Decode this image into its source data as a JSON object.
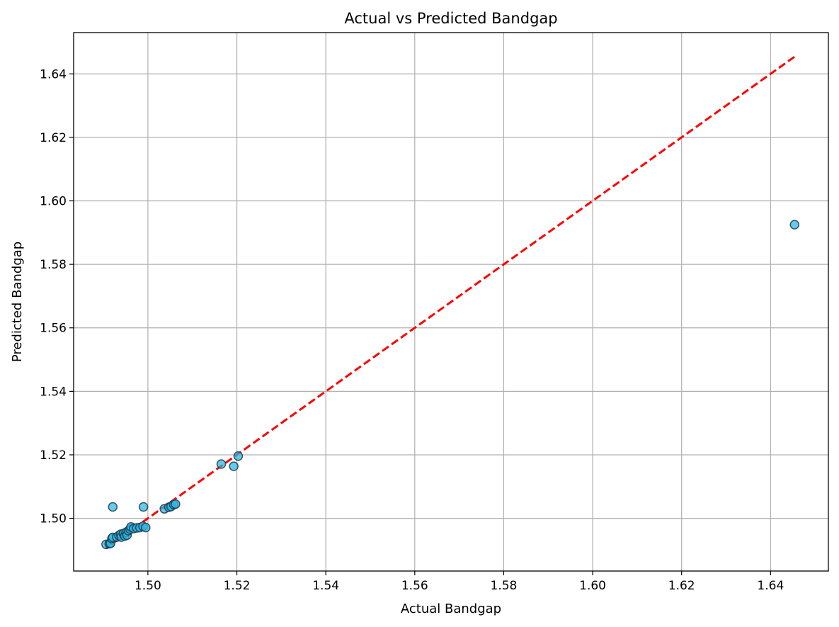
{
  "chart_data": {
    "type": "scatter",
    "title": "Actual vs Predicted Bandgap",
    "xlabel": "Actual Bandgap",
    "ylabel": "Predicted Bandgap",
    "xlim": [
      1.4833,
      1.653
    ],
    "ylim": [
      1.4834,
      1.653
    ],
    "xticks": [
      1.5,
      1.52,
      1.54,
      1.56,
      1.58,
      1.6,
      1.62,
      1.64
    ],
    "yticks": [
      1.5,
      1.52,
      1.54,
      1.56,
      1.58,
      1.6,
      1.62,
      1.64
    ],
    "xtick_labels": [
      "1.50",
      "1.52",
      "1.54",
      "1.56",
      "1.58",
      "1.60",
      "1.62",
      "1.64"
    ],
    "ytick_labels": [
      "1.50",
      "1.52",
      "1.54",
      "1.56",
      "1.58",
      "1.60",
      "1.62",
      "1.64"
    ],
    "grid": true,
    "point_color": "#29b6e8",
    "point_edge_color": "#1a3a4a",
    "reference_line": {
      "x": [
        1.4905,
        1.6455
      ],
      "y": [
        1.4905,
        1.6455
      ],
      "color": "#ff0000",
      "style": "dashed"
    },
    "points": [
      {
        "x": 1.4906,
        "y": 1.4918
      },
      {
        "x": 1.4913,
        "y": 1.492
      },
      {
        "x": 1.4916,
        "y": 1.4921
      },
      {
        "x": 1.4919,
        "y": 1.4936
      },
      {
        "x": 1.4921,
        "y": 1.494
      },
      {
        "x": 1.4921,
        "y": 1.5036
      },
      {
        "x": 1.493,
        "y": 1.4941
      },
      {
        "x": 1.4935,
        "y": 1.4946
      },
      {
        "x": 1.4939,
        "y": 1.495
      },
      {
        "x": 1.494,
        "y": 1.4941
      },
      {
        "x": 1.4945,
        "y": 1.4952
      },
      {
        "x": 1.4948,
        "y": 1.4944
      },
      {
        "x": 1.4951,
        "y": 1.4956
      },
      {
        "x": 1.4953,
        "y": 1.4947
      },
      {
        "x": 1.4956,
        "y": 1.4961
      },
      {
        "x": 1.496,
        "y": 1.4966
      },
      {
        "x": 1.4962,
        "y": 1.4973
      },
      {
        "x": 1.4968,
        "y": 1.4968
      },
      {
        "x": 1.4975,
        "y": 1.497
      },
      {
        "x": 1.4982,
        "y": 1.4971
      },
      {
        "x": 1.4989,
        "y": 1.4975
      },
      {
        "x": 1.499,
        "y": 1.5036
      },
      {
        "x": 1.4995,
        "y": 1.4971
      },
      {
        "x": 1.5037,
        "y": 1.503
      },
      {
        "x": 1.5047,
        "y": 1.5035
      },
      {
        "x": 1.5052,
        "y": 1.5037
      },
      {
        "x": 1.5058,
        "y": 1.5043
      },
      {
        "x": 1.5062,
        "y": 1.5045
      },
      {
        "x": 1.5165,
        "y": 1.5171
      },
      {
        "x": 1.5193,
        "y": 1.5164
      },
      {
        "x": 1.5203,
        "y": 1.5196
      },
      {
        "x": 1.6454,
        "y": 1.5925
      }
    ]
  }
}
